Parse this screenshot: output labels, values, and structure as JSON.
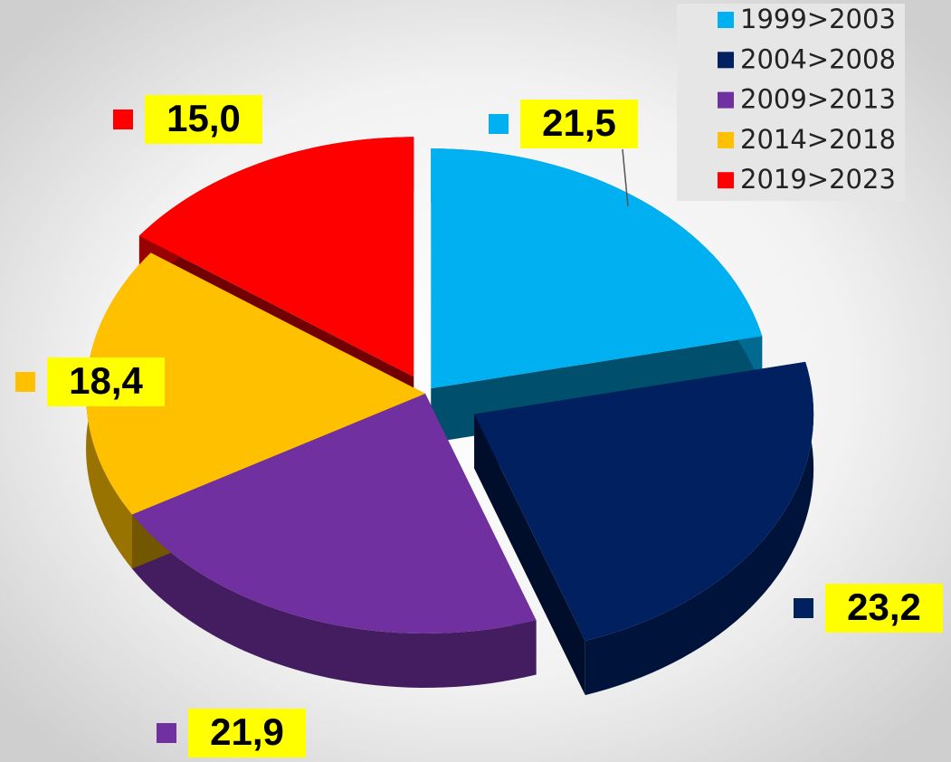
{
  "chart_data": {
    "type": "pie",
    "categories": [
      "1999>2003",
      "2004>2008",
      "2009>2013",
      "2014>2018",
      "2019>2023"
    ],
    "values": [
      21.5,
      23.2,
      21.9,
      18.4,
      15.0
    ],
    "value_labels": [
      "21,5",
      "23,2",
      "21,9",
      "18,4",
      "15,0"
    ],
    "colors": [
      "#00b0f0",
      "#002060",
      "#7030a0",
      "#ffc000",
      "#ff0000"
    ],
    "legend": "top-right"
  }
}
